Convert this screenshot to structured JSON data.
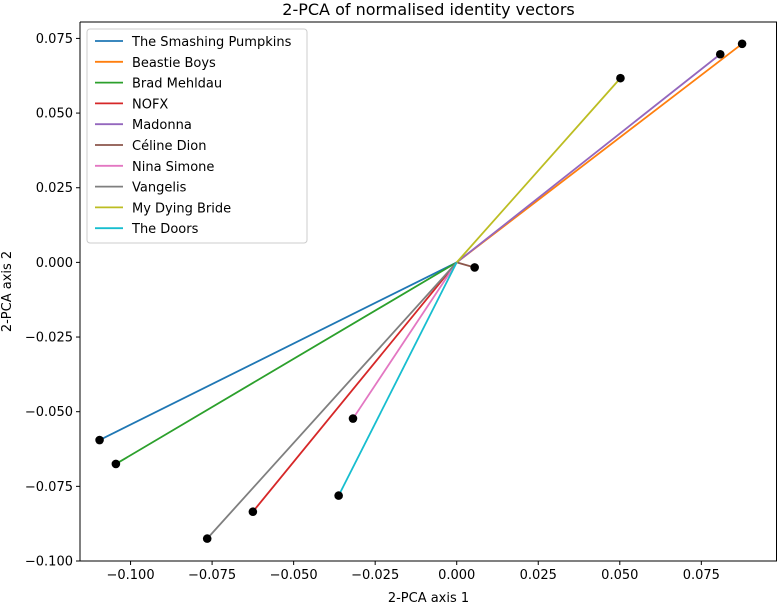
{
  "chart_data": {
    "type": "line",
    "title": "2-PCA of normalised identity vectors",
    "xlabel": "2-PCA axis 1",
    "ylabel": "2-PCA axis 2",
    "xlim": [
      -0.1155,
      0.0982
    ],
    "ylim": [
      -0.1,
      0.0805
    ],
    "xticks": [
      -0.1,
      -0.075,
      -0.05,
      -0.025,
      0.0,
      0.025,
      0.05,
      0.075
    ],
    "xtick_labels": [
      "−0.100",
      "−0.075",
      "−0.050",
      "−0.025",
      "0.000",
      "0.025",
      "0.050",
      "0.075"
    ],
    "yticks": [
      -0.1,
      -0.075,
      -0.05,
      -0.025,
      0.0,
      0.025,
      0.05,
      0.075
    ],
    "ytick_labels": [
      "−0.100",
      "−0.075",
      "−0.050",
      "−0.025",
      "0.000",
      "0.025",
      "0.050",
      "0.075"
    ],
    "grid": false,
    "legend_position": "top-left",
    "origin": [
      0,
      0
    ],
    "series": [
      {
        "name": "The Smashing Pumpkins",
        "color": "#1f77b4",
        "end": [
          -0.1095,
          -0.0595
        ]
      },
      {
        "name": "Beastie Boys",
        "color": "#ff7f0e",
        "end": [
          0.0875,
          0.0732
        ]
      },
      {
        "name": "Brad Mehldau",
        "color": "#2ca02c",
        "end": [
          -0.1045,
          -0.0675
        ]
      },
      {
        "name": "NOFX",
        "color": "#d62728",
        "end": [
          -0.0625,
          -0.0835
        ]
      },
      {
        "name": "Madonna",
        "color": "#9467bd",
        "end": [
          0.0808,
          0.0697
        ]
      },
      {
        "name": "Céline Dion",
        "color": "#8c564b",
        "end": [
          0.0055,
          -0.0017
        ]
      },
      {
        "name": "Nina Simone",
        "color": "#e377c2",
        "end": [
          -0.0318,
          -0.0523
        ]
      },
      {
        "name": "Vangelis",
        "color": "#7f7f7f",
        "end": [
          -0.0765,
          -0.0925
        ]
      },
      {
        "name": "My Dying Bride",
        "color": "#bcbd22",
        "end": [
          0.0502,
          0.0617
        ]
      },
      {
        "name": "The Doors",
        "color": "#17becf",
        "end": [
          -0.0362,
          -0.0781
        ]
      }
    ]
  }
}
